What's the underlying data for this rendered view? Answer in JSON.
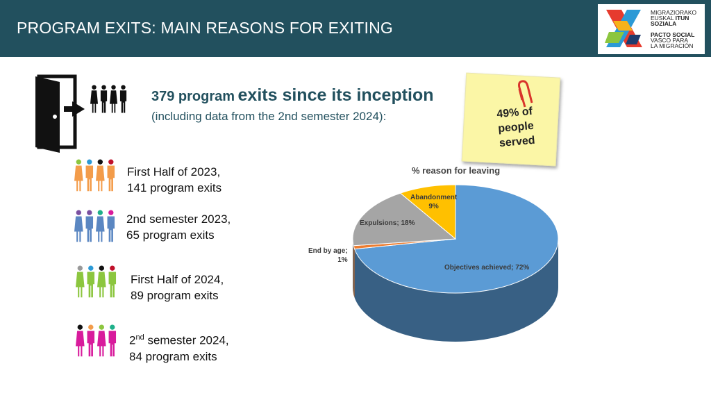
{
  "header": {
    "title": "PROGRAM EXITS: MAIN REASONS FOR EXITING"
  },
  "logo": {
    "line1": "MIGRAZIORAKO",
    "line2a": "EUSKAL ",
    "line2b": "ITUN",
    "line3": "SOZIALA",
    "line4": "PACTO SOCIAL",
    "line5": "VASCO PARA",
    "line6": "LA MIGRACIÓN"
  },
  "headline": {
    "count": "379 program",
    "rest": "exits since its inception",
    "sub": "(including data from the 2nd semester 2024):"
  },
  "note": {
    "line1": "49% of",
    "line2": "people",
    "line3": "served"
  },
  "periods": [
    {
      "line1": "First Half of 2023,",
      "line2": "141 program exits",
      "color": "#f39c4a"
    },
    {
      "line1": "2nd semester  2023,",
      "line2": "65 program exits",
      "color": "#5b87c2"
    },
    {
      "line1": "First Half of 2024,",
      "line2": "89 program exits",
      "color": "#8cc63f"
    },
    {
      "sup_pre": "2",
      "sup": "nd",
      "line1": " semester 2024,",
      "line2": "84 program exits",
      "color": "#d81b9c"
    }
  ],
  "chart_data": {
    "type": "pie",
    "title": "% reason for leaving",
    "slices": [
      {
        "label": "Objectives achieved; 72%",
        "value": 72,
        "color": "#5b9bd5"
      },
      {
        "label": "End by age;",
        "label2": "1%",
        "value": 1,
        "color": "#ed7d31"
      },
      {
        "label": "Expulsions; 18%",
        "value": 18,
        "color": "#a5a5a5"
      },
      {
        "label": "Abandonment",
        "label2": "9%",
        "value": 9,
        "color": "#ffc000"
      }
    ]
  }
}
